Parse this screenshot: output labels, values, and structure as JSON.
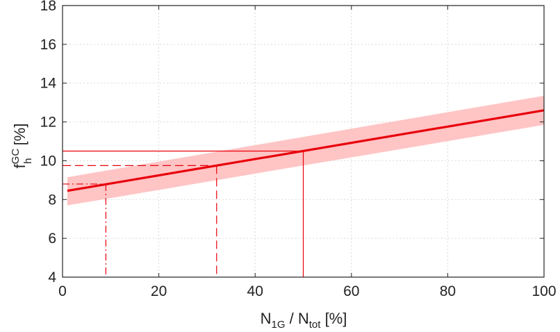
{
  "chart_data": {
    "type": "line",
    "xlabel": {
      "main": "N",
      "sub1": "1G",
      "mid": " / N",
      "sub2": "tot",
      "unit": " [%]"
    },
    "ylabel": {
      "main": "f",
      "sup": "GC",
      "sub": "h",
      "unit": " [%]"
    },
    "xlim": [
      0,
      100
    ],
    "ylim": [
      4,
      18
    ],
    "xticks": [
      0,
      20,
      40,
      60,
      80,
      100
    ],
    "yticks": [
      4,
      6,
      8,
      10,
      12,
      14,
      16,
      18
    ],
    "grid": true,
    "colors": {
      "line": "#e8000b",
      "band": "#ffc4c4",
      "grid": "#d9d9d9",
      "axis": "#222222"
    },
    "series": [
      {
        "x": [
          1,
          100
        ],
        "y": [
          8.45,
          12.6
        ],
        "band_upper": [
          9.15,
          13.35
        ],
        "band_lower": [
          7.7,
          11.85
        ]
      }
    ],
    "markers": [
      {
        "x": 9,
        "y": 8.8,
        "style": "dashdot"
      },
      {
        "x": 32,
        "y": 9.75,
        "style": "dashed"
      },
      {
        "x": 50,
        "y": 10.5,
        "style": "solid"
      }
    ]
  }
}
